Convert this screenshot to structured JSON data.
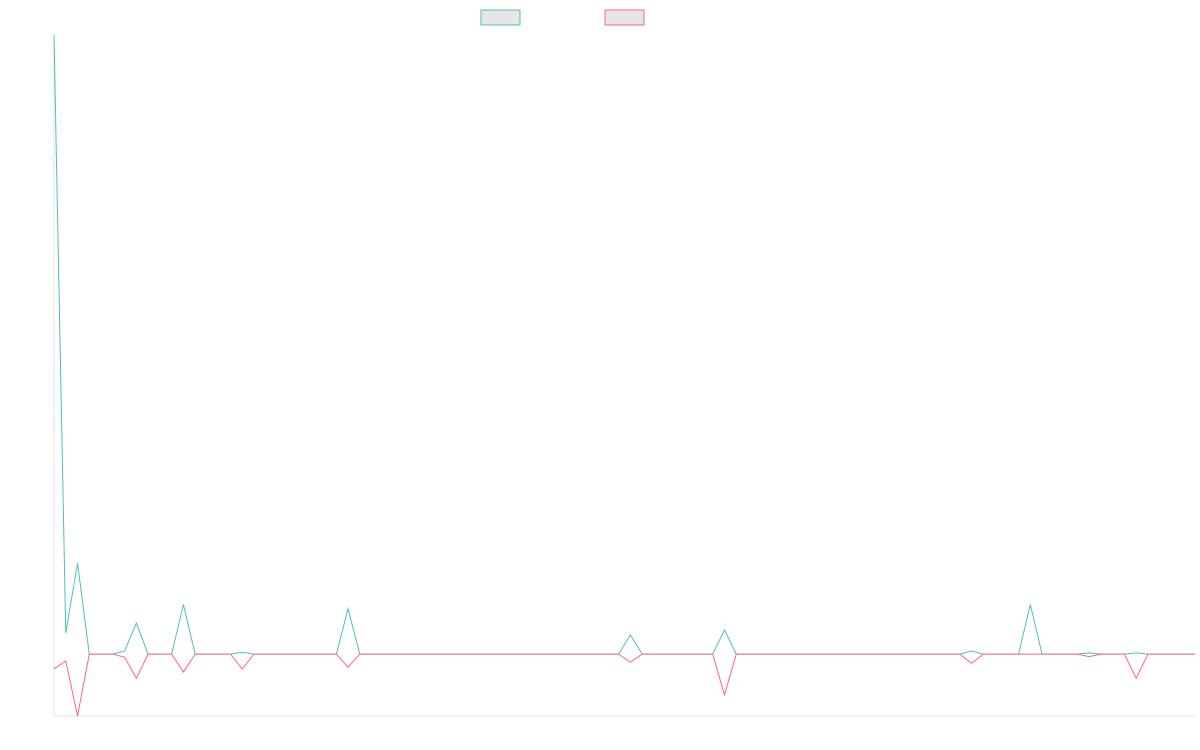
{
  "chart_data": {
    "type": "line",
    "series": [
      {
        "color": "#4bc0c0",
        "values": [
          100,
          3.4,
          14.7,
          0,
          0,
          0,
          0.5,
          5,
          0,
          0,
          0,
          8,
          0,
          0,
          0,
          0,
          0.3,
          0,
          0,
          0,
          0,
          0,
          0,
          0,
          0,
          7.3,
          0,
          0,
          0,
          0,
          0,
          0,
          0,
          0,
          0,
          0,
          0,
          0,
          0,
          0,
          0,
          0,
          0,
          0,
          0,
          0,
          0,
          0,
          0,
          3.1,
          0,
          0,
          0,
          0,
          0,
          0,
          0,
          3.9,
          0,
          0,
          0,
          0,
          0,
          0,
          0,
          0,
          0,
          0,
          0,
          0,
          0,
          0,
          0,
          0,
          0,
          0,
          0,
          0,
          0.5,
          0,
          0,
          0,
          0,
          8,
          0,
          0,
          0,
          0,
          0.2,
          0,
          0,
          0,
          0.2,
          0,
          0,
          0,
          0,
          0
        ]
      },
      {
        "color": "#ff6384",
        "values": [
          -2.4,
          -1.1,
          -10,
          0,
          0,
          0,
          -0.5,
          -3.9,
          0,
          0,
          0,
          -2.9,
          0,
          0,
          0,
          0,
          -2.4,
          0,
          0,
          0,
          0,
          0,
          0,
          0,
          0,
          -2.1,
          0,
          0,
          0,
          0,
          0,
          0,
          0,
          0,
          0,
          0,
          0,
          0,
          0,
          0,
          0,
          0,
          0,
          0,
          0,
          0,
          0,
          0,
          0,
          -1.3,
          0,
          0,
          0,
          0,
          0,
          0,
          0,
          -6.6,
          0,
          0,
          0,
          0,
          0,
          0,
          0,
          0,
          0,
          0,
          0,
          0,
          0,
          0,
          0,
          0,
          0,
          0,
          0,
          0,
          -1.5,
          0,
          0,
          0,
          0,
          0,
          0,
          0,
          0,
          0,
          -0.4,
          0,
          0,
          0,
          -3.9,
          0,
          0,
          0,
          0,
          0
        ]
      }
    ],
    "ylim": [
      -10,
      100
    ]
  }
}
